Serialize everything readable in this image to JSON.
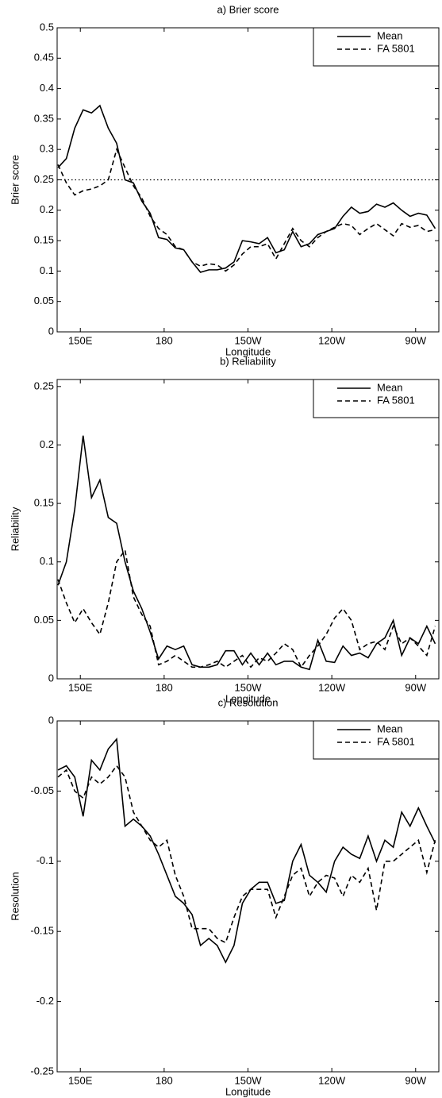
{
  "chart_data": [
    {
      "type": "line",
      "title": "a) Brier score",
      "xlabel": "Longitude",
      "ylabel": "Brier score",
      "x": [
        142,
        145,
        148,
        151,
        154,
        157,
        160,
        163,
        166,
        169,
        172,
        175,
        178,
        181,
        184,
        187,
        190,
        193,
        196,
        199,
        202,
        205,
        208,
        211,
        214,
        217,
        220,
        223,
        226,
        229,
        232,
        235,
        238,
        241,
        244,
        247,
        250,
        253,
        256,
        259,
        262,
        265,
        268,
        271,
        274,
        277
      ],
      "series": [
        {
          "name": "Mean",
          "color": "#000000",
          "style": "solid",
          "values": [
            0.27,
            0.285,
            0.335,
            0.365,
            0.36,
            0.372,
            0.335,
            0.31,
            0.25,
            0.245,
            0.215,
            0.195,
            0.155,
            0.152,
            0.138,
            0.135,
            0.115,
            0.098,
            0.102,
            0.102,
            0.105,
            0.115,
            0.15,
            0.148,
            0.145,
            0.155,
            0.13,
            0.135,
            0.165,
            0.14,
            0.145,
            0.16,
            0.165,
            0.17,
            0.19,
            0.205,
            0.195,
            0.198,
            0.21,
            0.205,
            0.212,
            0.2,
            0.19,
            0.195,
            0.192,
            0.17
          ]
        },
        {
          "name": "FA 5801",
          "color": "#000000",
          "style": "dashed",
          "values": [
            0.275,
            0.245,
            0.225,
            0.232,
            0.235,
            0.24,
            0.25,
            0.3,
            0.27,
            0.24,
            0.22,
            0.19,
            0.17,
            0.16,
            0.14,
            0.135,
            0.115,
            0.108,
            0.112,
            0.11,
            0.1,
            0.11,
            0.128,
            0.14,
            0.14,
            0.145,
            0.12,
            0.145,
            0.17,
            0.15,
            0.14,
            0.155,
            0.165,
            0.172,
            0.178,
            0.175,
            0.16,
            0.17,
            0.178,
            0.168,
            0.158,
            0.178,
            0.172,
            0.175,
            0.165,
            0.168
          ]
        }
      ],
      "hline": 0.25,
      "xlim": [
        141.7,
        278.3
      ],
      "xticks": [
        {
          "value": 150,
          "label": "150E"
        },
        180,
        {
          "value": 210,
          "label": "150W"
        },
        {
          "value": 240,
          "label": "120W"
        },
        {
          "value": 270,
          "label": "90W"
        }
      ],
      "ylim": [
        0,
        0.5
      ],
      "yticks": [
        0,
        0.05,
        0.1,
        0.15,
        0.2,
        0.25,
        0.3,
        0.35,
        0.4,
        0.45,
        0.5
      ],
      "legend": "upper right"
    },
    {
      "type": "line",
      "title": "b) Reliability",
      "xlabel": "Longitude",
      "ylabel": "Reliability",
      "x": [
        142,
        145,
        148,
        151,
        154,
        157,
        160,
        163,
        166,
        169,
        172,
        175,
        178,
        181,
        184,
        187,
        190,
        193,
        196,
        199,
        202,
        205,
        208,
        211,
        214,
        217,
        220,
        223,
        226,
        229,
        232,
        235,
        238,
        241,
        244,
        247,
        250,
        253,
        256,
        259,
        262,
        265,
        268,
        271,
        274,
        277
      ],
      "series": [
        {
          "name": "Mean",
          "color": "#000000",
          "style": "solid",
          "values": [
            0.08,
            0.1,
            0.145,
            0.208,
            0.155,
            0.17,
            0.138,
            0.133,
            0.1,
            0.075,
            0.06,
            0.04,
            0.017,
            0.028,
            0.025,
            0.028,
            0.012,
            0.01,
            0.01,
            0.012,
            0.024,
            0.024,
            0.012,
            0.022,
            0.012,
            0.022,
            0.012,
            0.015,
            0.015,
            0.01,
            0.008,
            0.033,
            0.015,
            0.014,
            0.028,
            0.02,
            0.022,
            0.018,
            0.03,
            0.035,
            0.05,
            0.02,
            0.035,
            0.03,
            0.045,
            0.03
          ]
        },
        {
          "name": "FA 5801",
          "color": "#000000",
          "style": "dashed",
          "values": [
            0.085,
            0.065,
            0.048,
            0.06,
            0.048,
            0.038,
            0.065,
            0.1,
            0.11,
            0.07,
            0.055,
            0.045,
            0.012,
            0.015,
            0.02,
            0.015,
            0.01,
            0.01,
            0.012,
            0.015,
            0.01,
            0.015,
            0.02,
            0.01,
            0.018,
            0.015,
            0.022,
            0.03,
            0.025,
            0.01,
            0.02,
            0.028,
            0.038,
            0.052,
            0.06,
            0.05,
            0.025,
            0.03,
            0.032,
            0.025,
            0.045,
            0.03,
            0.035,
            0.028,
            0.02,
            0.045
          ]
        }
      ],
      "xlim": [
        141.7,
        278.3
      ],
      "xticks": [
        {
          "value": 150,
          "label": "150E"
        },
        180,
        {
          "value": 210,
          "label": "150W"
        },
        {
          "value": 240,
          "label": "120W"
        },
        {
          "value": 270,
          "label": "90W"
        }
      ],
      "ylim": [
        0,
        0.256
      ],
      "yticks": [
        0,
        0.05,
        0.1,
        0.15,
        0.2,
        0.25
      ],
      "legend": "upper right"
    },
    {
      "type": "line",
      "title": "c) Resolution",
      "xlabel": "Longitude",
      "ylabel": "Resolution",
      "x": [
        142,
        145,
        148,
        151,
        154,
        157,
        160,
        163,
        166,
        169,
        172,
        175,
        178,
        181,
        184,
        187,
        190,
        193,
        196,
        199,
        202,
        205,
        208,
        211,
        214,
        217,
        220,
        223,
        226,
        229,
        232,
        235,
        238,
        241,
        244,
        247,
        250,
        253,
        256,
        259,
        262,
        265,
        268,
        271,
        274,
        277
      ],
      "series": [
        {
          "name": "Mean",
          "color": "#000000",
          "style": "solid",
          "values": [
            -0.035,
            -0.032,
            -0.04,
            -0.068,
            -0.028,
            -0.035,
            -0.02,
            -0.013,
            -0.075,
            -0.07,
            -0.075,
            -0.082,
            -0.095,
            -0.11,
            -0.125,
            -0.13,
            -0.138,
            -0.16,
            -0.155,
            -0.16,
            -0.172,
            -0.16,
            -0.13,
            -0.12,
            -0.115,
            -0.115,
            -0.13,
            -0.128,
            -0.1,
            -0.088,
            -0.11,
            -0.115,
            -0.122,
            -0.1,
            -0.09,
            -0.095,
            -0.098,
            -0.082,
            -0.1,
            -0.085,
            -0.09,
            -0.065,
            -0.075,
            -0.062,
            -0.075,
            -0.087
          ]
        },
        {
          "name": "FA 5801",
          "color": "#000000",
          "style": "dashed",
          "values": [
            -0.04,
            -0.035,
            -0.05,
            -0.055,
            -0.04,
            -0.045,
            -0.04,
            -0.032,
            -0.04,
            -0.065,
            -0.075,
            -0.085,
            -0.09,
            -0.085,
            -0.11,
            -0.125,
            -0.148,
            -0.148,
            -0.148,
            -0.155,
            -0.158,
            -0.14,
            -0.125,
            -0.12,
            -0.12,
            -0.12,
            -0.14,
            -0.125,
            -0.11,
            -0.105,
            -0.125,
            -0.115,
            -0.11,
            -0.112,
            -0.125,
            -0.11,
            -0.115,
            -0.105,
            -0.135,
            -0.1,
            -0.1,
            -0.095,
            -0.09,
            -0.085,
            -0.108,
            -0.085
          ]
        }
      ],
      "xlim": [
        141.7,
        278.3
      ],
      "xticks": [
        {
          "value": 150,
          "label": "150E"
        },
        180,
        {
          "value": 210,
          "label": "150W"
        },
        {
          "value": 240,
          "label": "120W"
        },
        {
          "value": 270,
          "label": "90W"
        }
      ],
      "ylim": [
        -0.25,
        0
      ],
      "yticks": [
        -0.25,
        -0.2,
        -0.15,
        -0.1,
        -0.05,
        0
      ],
      "legend": "upper right"
    }
  ]
}
